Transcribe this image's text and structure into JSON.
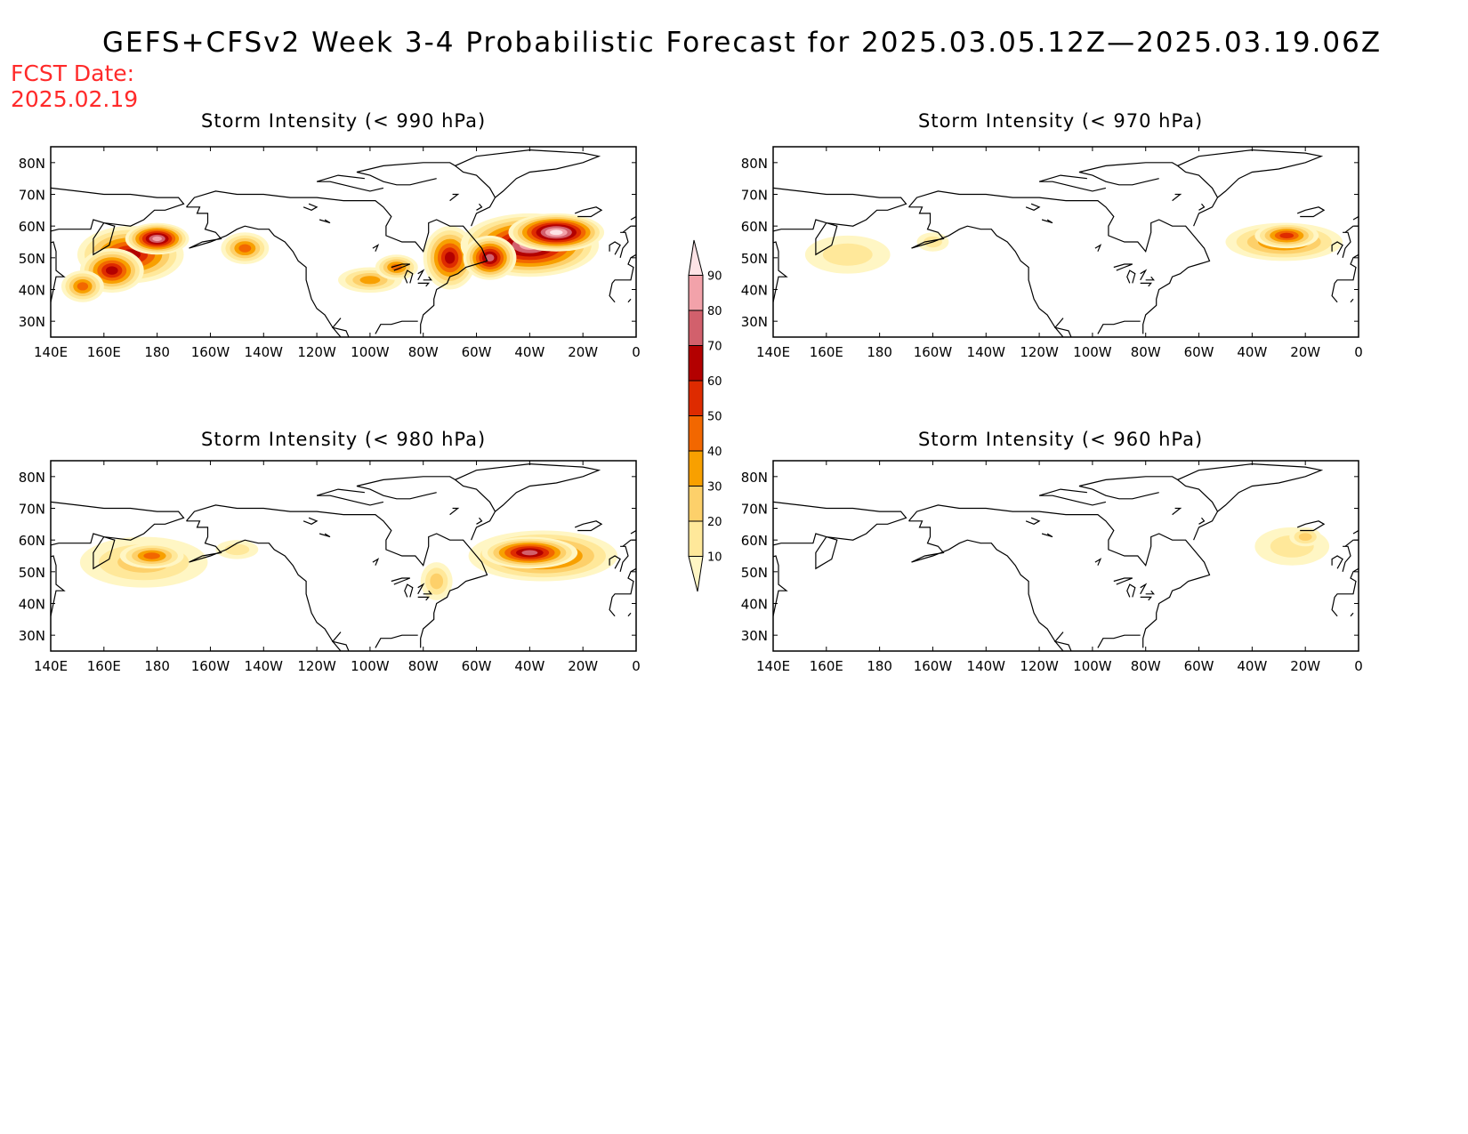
{
  "title": "GEFS+CFSv2 Week 3-4 Probabilistic Forecast for 2025.03.05.12Z—2025.03.19.06Z",
  "forecast_date": {
    "label": "FCST Date:",
    "value": "2025.02.19"
  },
  "axes": {
    "lon_labels": [
      "140E",
      "160E",
      "180",
      "160W",
      "140W",
      "120W",
      "100W",
      "80W",
      "60W",
      "40W",
      "20W",
      "0"
    ],
    "lat_labels": [
      "30N",
      "40N",
      "50N",
      "60N",
      "70N",
      "80N"
    ],
    "lon_range_deg_east": [
      140,
      360
    ],
    "lat_range": [
      25,
      85
    ]
  },
  "colorbar": {
    "levels": [
      "10",
      "20",
      "30",
      "40",
      "50",
      "60",
      "70",
      "80",
      "90"
    ],
    "colors": [
      "#fff6c4",
      "#ffe89a",
      "#fdd06a",
      "#f8a000",
      "#f26700",
      "#de2b00",
      "#b30000",
      "#d2606c",
      "#f2a2aa",
      "#fde3e6"
    ]
  },
  "panels": [
    {
      "id": "p990",
      "title": "Storm Intensity (< 990 hPa)",
      "blobs": [
        {
          "lon": 170,
          "lat": 51,
          "rlon": 20,
          "rlat": 9,
          "level": 6
        },
        {
          "lon": 180,
          "lat": 56,
          "rlon": 12,
          "rlat": 5,
          "level": 8
        },
        {
          "lon": 163,
          "lat": 46,
          "rlon": 12,
          "rlat": 7,
          "level": 6
        },
        {
          "lon": 152,
          "lat": 41,
          "rlon": 8,
          "rlat": 5,
          "level": 4
        },
        {
          "lon": 213,
          "lat": 53,
          "rlon": 9,
          "rlat": 5,
          "level": 4
        },
        {
          "lon": 260,
          "lat": 43,
          "rlon": 12,
          "rlat": 4,
          "level": 3
        },
        {
          "lon": 270,
          "lat": 47,
          "rlon": 8,
          "rlat": 4,
          "level": 4
        },
        {
          "lon": 290,
          "lat": 50,
          "rlon": 10,
          "rlat": 10,
          "level": 6
        },
        {
          "lon": 320,
          "lat": 54,
          "rlon": 26,
          "rlat": 10,
          "level": 8
        },
        {
          "lon": 330,
          "lat": 58,
          "rlon": 18,
          "rlat": 6,
          "level": 9
        },
        {
          "lon": 305,
          "lat": 50,
          "rlon": 10,
          "rlat": 7,
          "level": 7
        }
      ]
    },
    {
      "id": "p970",
      "title": "Storm Intensity (< 970 hPa)",
      "blobs": [
        {
          "lon": 168,
          "lat": 51,
          "rlon": 16,
          "rlat": 6,
          "level": 1
        },
        {
          "lon": 200,
          "lat": 55,
          "rlon": 6,
          "rlat": 3,
          "level": 1
        },
        {
          "lon": 332,
          "lat": 55,
          "rlon": 22,
          "rlat": 6,
          "level": 4
        },
        {
          "lon": 333,
          "lat": 57,
          "rlon": 12,
          "rlat": 4,
          "level": 5
        }
      ]
    },
    {
      "id": "p980",
      "title": "Storm Intensity (< 980 hPa)",
      "blobs": [
        {
          "lon": 175,
          "lat": 53,
          "rlon": 24,
          "rlat": 8,
          "level": 2
        },
        {
          "lon": 178,
          "lat": 55,
          "rlon": 12,
          "rlat": 4,
          "level": 4
        },
        {
          "lon": 210,
          "lat": 57,
          "rlon": 8,
          "rlat": 3,
          "level": 1
        },
        {
          "lon": 325,
          "lat": 55,
          "rlon": 28,
          "rlat": 8,
          "level": 5
        },
        {
          "lon": 320,
          "lat": 56,
          "rlon": 18,
          "rlat": 5,
          "level": 7
        },
        {
          "lon": 285,
          "lat": 47,
          "rlon": 6,
          "rlat": 6,
          "level": 2
        }
      ]
    },
    {
      "id": "p960",
      "title": "Storm Intensity (< 960 hPa)",
      "blobs": [
        {
          "lon": 335,
          "lat": 58,
          "rlon": 14,
          "rlat": 6,
          "level": 1
        },
        {
          "lon": 340,
          "lat": 61,
          "rlon": 6,
          "rlat": 3,
          "level": 2
        }
      ]
    }
  ]
}
